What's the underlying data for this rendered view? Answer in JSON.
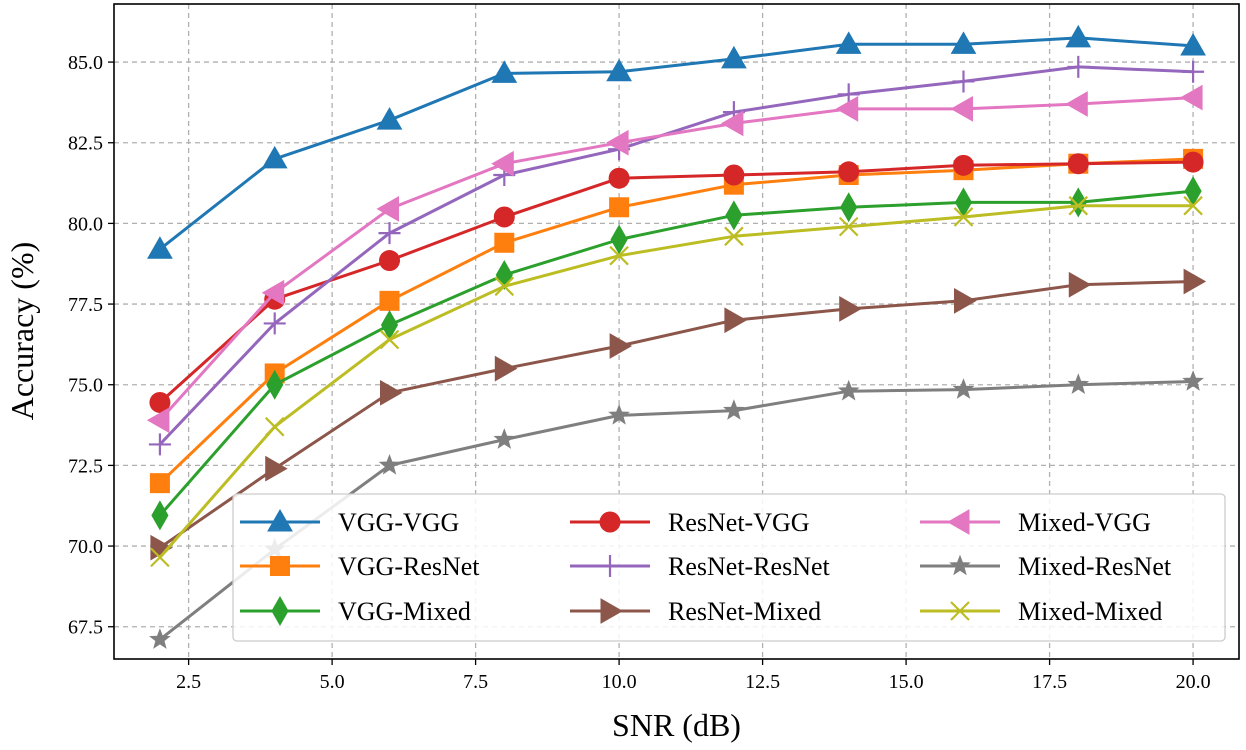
{
  "chart_data": {
    "type": "line",
    "title": "",
    "xlabel": "SNR (dB)",
    "ylabel": "Accuracy (%)",
    "xlim": [
      1.2,
      20.8
    ],
    "ylim": [
      66.5,
      86.8
    ],
    "x_ticks": [
      2.5,
      5.0,
      7.5,
      10.0,
      12.5,
      15.0,
      17.5,
      20.0
    ],
    "x_tick_labels": [
      "2.5",
      "5.0",
      "7.5",
      "10.0",
      "12.5",
      "15.0",
      "17.5",
      "20.0"
    ],
    "y_ticks": [
      67.5,
      70.0,
      72.5,
      75.0,
      77.5,
      80.0,
      82.5,
      85.0
    ],
    "y_tick_labels": [
      "67.5",
      "70.0",
      "72.5",
      "75.0",
      "77.5",
      "80.0",
      "82.5",
      "85.0"
    ],
    "grid": true,
    "legend_position": "lower-right",
    "x": [
      2,
      4,
      6,
      8,
      10,
      12,
      14,
      16,
      18,
      20
    ],
    "series": [
      {
        "name": "VGG-VGG",
        "color": "#1f77b4",
        "marker": "triangle-up",
        "values": [
          79.2,
          82.0,
          83.2,
          84.65,
          84.7,
          85.1,
          85.55,
          85.55,
          85.75,
          85.5
        ]
      },
      {
        "name": "VGG-ResNet",
        "color": "#ff7f0e",
        "marker": "square",
        "values": [
          71.95,
          75.35,
          77.6,
          79.4,
          80.5,
          81.2,
          81.5,
          81.65,
          81.85,
          82.0
        ]
      },
      {
        "name": "VGG-Mixed",
        "color": "#2ca02c",
        "marker": "diamond",
        "values": [
          70.95,
          75.0,
          76.85,
          78.4,
          79.5,
          80.25,
          80.5,
          80.65,
          80.65,
          81.0
        ]
      },
      {
        "name": "ResNet-VGG",
        "color": "#d62728",
        "marker": "circle",
        "values": [
          74.45,
          77.65,
          78.85,
          80.2,
          81.4,
          81.5,
          81.6,
          81.8,
          81.85,
          81.9
        ]
      },
      {
        "name": "ResNet-ResNet",
        "color": "#9467bd",
        "marker": "plus",
        "values": [
          73.15,
          76.9,
          79.7,
          81.5,
          82.3,
          83.45,
          84.0,
          84.4,
          84.85,
          84.7
        ]
      },
      {
        "name": "ResNet-Mixed",
        "color": "#8c564b",
        "marker": "triangle-right",
        "values": [
          69.95,
          72.4,
          74.75,
          75.5,
          76.2,
          77.0,
          77.35,
          77.6,
          78.1,
          78.2
        ]
      },
      {
        "name": "Mixed-VGG",
        "color": "#e377c2",
        "marker": "triangle-left",
        "values": [
          73.9,
          77.85,
          80.45,
          81.85,
          82.5,
          83.1,
          83.55,
          83.55,
          83.7,
          83.9
        ]
      },
      {
        "name": "Mixed-ResNet",
        "color": "#7f7f7f",
        "marker": "star",
        "values": [
          67.1,
          69.9,
          72.5,
          73.3,
          74.05,
          74.2,
          74.8,
          74.85,
          75.0,
          75.1
        ]
      },
      {
        "name": "Mixed-Mixed",
        "color": "#bcbd22",
        "marker": "x",
        "values": [
          69.65,
          73.7,
          76.4,
          78.05,
          79.0,
          79.6,
          79.9,
          80.2,
          80.55,
          80.55
        ]
      }
    ]
  }
}
